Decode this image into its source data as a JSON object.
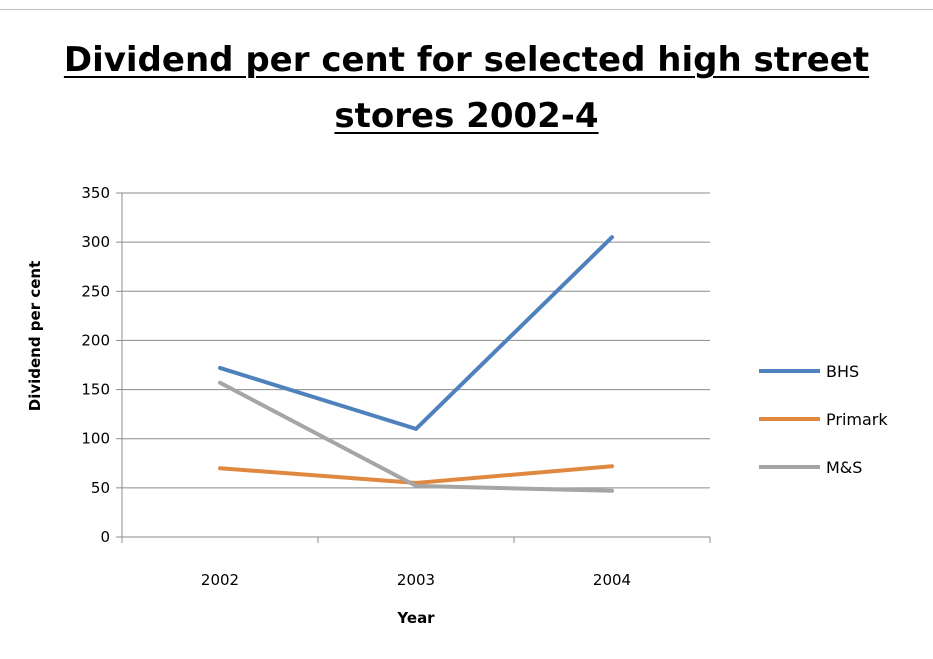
{
  "chart_data": {
    "type": "line",
    "title_line1": "Dividend per cent for selected high street",
    "title_line2": "stores 2002-4",
    "xlabel": "Year",
    "ylabel": "Dividend  per cent",
    "categories": [
      "2002",
      "2003",
      "2004"
    ],
    "ylim": [
      0,
      350
    ],
    "yticks": [
      0,
      50,
      100,
      150,
      200,
      250,
      300,
      350
    ],
    "grid": true,
    "legend_position": "right",
    "series": [
      {
        "name": "BHS",
        "values": [
          172,
          110,
          305
        ],
        "color": "#4f81bd"
      },
      {
        "name": "Primark",
        "values": [
          70,
          55,
          72
        ],
        "color": "#e0883f"
      },
      {
        "name": "M&S",
        "values": [
          157,
          52,
          47
        ],
        "color": "#a5a5a5"
      }
    ]
  }
}
